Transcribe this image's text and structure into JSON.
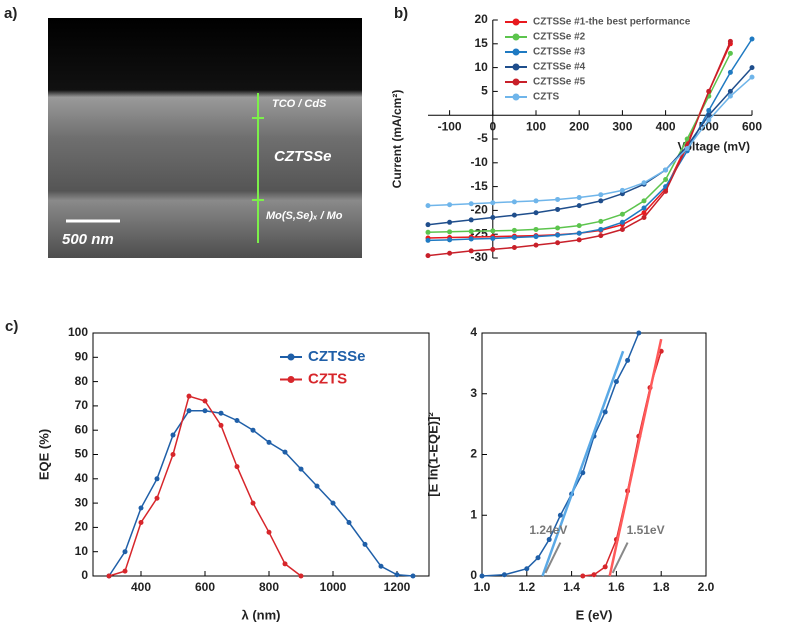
{
  "image_panel": {
    "panel": "a)",
    "labels": [
      "TCO / CdS",
      "CZTSSe",
      "Mo(S,Se)ₓ / Mo"
    ],
    "scale_bar": "500 nm"
  },
  "chart_data": [
    {
      "type": "line",
      "panel": "b)",
      "x_label": "Voltage (mV)",
      "y_label": "Current (mA/cm²)",
      "axes_at_zero": true,
      "x": [
        -150,
        -100,
        -50,
        0,
        50,
        100,
        150,
        200,
        250,
        300,
        350,
        400,
        450,
        500,
        550,
        600
      ],
      "xlim": [
        -150,
        600
      ],
      "ylim": [
        -30,
        20
      ],
      "xticks": [
        -100,
        0,
        100,
        200,
        300,
        400,
        500,
        600
      ],
      "yticks": [
        -30,
        -25,
        -20,
        -15,
        -10,
        -5,
        5,
        10,
        15,
        20
      ],
      "series": [
        {
          "name": "CZTSSe #1-the best performance",
          "color": "#e8191f",
          "values": [
            -25.8,
            -25.7,
            -25.6,
            -25.5,
            -25.4,
            -25.3,
            -25.1,
            -24.8,
            -24.2,
            -23,
            -20.5,
            -15.5,
            -6,
            5,
            15,
            null
          ]
        },
        {
          "name": "CZTSSe #2",
          "color": "#5cc44d",
          "values": [
            -24.6,
            -24.5,
            -24.4,
            -24.3,
            -24.2,
            -24,
            -23.7,
            -23.2,
            -22.3,
            -20.8,
            -18,
            -13.5,
            -5,
            4,
            13,
            null
          ]
        },
        {
          "name": "CZTSSe #3",
          "color": "#1f7ac2",
          "values": [
            -26.3,
            -26.2,
            -26,
            -25.9,
            -25.7,
            -25.5,
            -25.2,
            -24.8,
            -24,
            -22.5,
            -19.5,
            -15,
            -7.5,
            1,
            9,
            16
          ]
        },
        {
          "name": "CZTSSe #4",
          "color": "#1f4e8c",
          "values": [
            -23,
            -22.5,
            -22,
            -21.5,
            -21,
            -20.5,
            -19.8,
            -19,
            -18,
            -16.5,
            -14.5,
            -11.5,
            -6.5,
            0,
            5,
            10
          ]
        },
        {
          "name": "CZTSSe #5",
          "color": "#c8202a",
          "values": [
            -29.5,
            -29,
            -28.5,
            -28.2,
            -27.8,
            -27.3,
            -26.8,
            -26.2,
            -25.3,
            -24,
            -21.5,
            -16,
            -6.5,
            5,
            15.5,
            null
          ]
        },
        {
          "name": "CZTS",
          "color": "#6fb5ea",
          "values": [
            -19,
            -18.8,
            -18.6,
            -18.4,
            -18.2,
            -18,
            -17.7,
            -17.3,
            -16.7,
            -15.8,
            -14.2,
            -11.5,
            -7,
            -1,
            4,
            8
          ]
        }
      ]
    },
    {
      "type": "line",
      "panel": "c)",
      "x_label": "λ (nm)",
      "y_label": "EQE (%)",
      "x": [
        300,
        350,
        400,
        450,
        500,
        550,
        600,
        650,
        700,
        750,
        800,
        850,
        900,
        950,
        1000,
        1050,
        1100,
        1150,
        1200,
        1250
      ],
      "xlim": [
        250,
        1300
      ],
      "ylim": [
        0,
        100
      ],
      "xticks": [
        400,
        600,
        800,
        1000,
        1200
      ],
      "yticks": [
        0,
        10,
        20,
        30,
        40,
        50,
        60,
        70,
        80,
        90,
        100
      ],
      "series": [
        {
          "name": "CZTSSe",
          "color": "#1f5fa8",
          "values": [
            0,
            10,
            28,
            40,
            58,
            68,
            68,
            67,
            64,
            60,
            55,
            51,
            44,
            37,
            30,
            22,
            13,
            4,
            0.5,
            0
          ]
        },
        {
          "name": "CZTS",
          "color": "#d7262b",
          "values": [
            0,
            2,
            22,
            32,
            50,
            74,
            72,
            62,
            45,
            30,
            18,
            5,
            0,
            null,
            null,
            null,
            null,
            null,
            null,
            null
          ]
        }
      ]
    },
    {
      "type": "line",
      "x_label": "E (eV)",
      "y_label": "[E ln(1-EQE)]²",
      "x": [
        1.0,
        1.1,
        1.2,
        1.25,
        1.3,
        1.35,
        1.4,
        1.45,
        1.5,
        1.55,
        1.6,
        1.65,
        1.7,
        1.75,
        1.8
      ],
      "xlim": [
        1.0,
        2.0
      ],
      "ylim": [
        0,
        4
      ],
      "xticks": [
        {
          "value": 1.0,
          "label": "1.0"
        },
        1.2,
        1.4,
        1.6,
        1.8,
        {
          "value": 2.0,
          "label": "2.0"
        }
      ],
      "yticks": [
        0,
        1,
        2,
        3,
        4
      ],
      "annotations": [
        "1.24eV",
        "1.51eV"
      ],
      "series": [
        {
          "color": "#1f5fa8",
          "values": [
            0,
            0.02,
            0.12,
            0.3,
            0.6,
            1.0,
            1.35,
            1.7,
            2.3,
            2.7,
            3.2,
            3.55,
            4.0,
            null,
            null
          ]
        },
        {
          "color": "#d7262b",
          "values": [
            null,
            null,
            null,
            null,
            null,
            null,
            null,
            0,
            0.02,
            0.15,
            0.6,
            1.4,
            2.3,
            3.1,
            3.7
          ]
        },
        {
          "color": "#5aa9e6",
          "x": [
            1.27,
            1.63
          ],
          "values": [
            0,
            3.7
          ]
        },
        {
          "color": "#ff5a5a",
          "x": [
            1.57,
            1.8
          ],
          "values": [
            0,
            3.9
          ]
        }
      ]
    }
  ]
}
